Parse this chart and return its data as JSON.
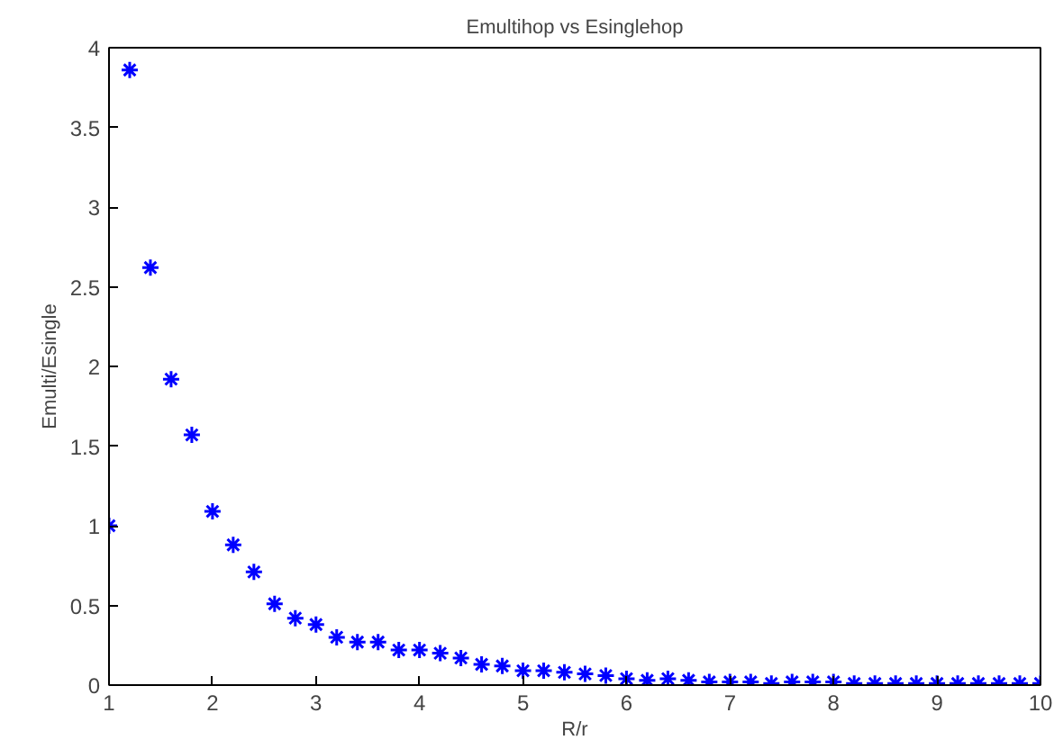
{
  "chart_data": {
    "type": "scatter",
    "title": "Emultihop vs Esinglehop",
    "xlabel": "R/r",
    "ylabel": "Emulti/Esingle",
    "x": [
      1,
      1.2,
      1.4,
      1.6,
      1.8,
      2,
      2.2,
      2.4,
      2.6,
      2.8,
      3,
      3.2,
      3.4,
      3.6,
      3.8,
      4,
      4.2,
      4.4,
      4.6,
      4.8,
      5,
      5.2,
      5.4,
      5.6,
      5.8,
      6,
      6.2,
      6.4,
      6.6,
      6.8,
      7,
      7.2,
      7.4,
      7.6,
      7.8,
      8,
      8.2,
      8.4,
      8.6,
      8.8,
      9,
      9.2,
      9.4,
      9.6,
      9.8,
      10
    ],
    "series": [
      {
        "color": "#0000ff",
        "values": [
          1.0,
          3.86,
          2.62,
          1.92,
          1.57,
          1.09,
          0.88,
          0.71,
          0.51,
          0.42,
          0.38,
          0.3,
          0.27,
          0.27,
          0.22,
          0.22,
          0.2,
          0.17,
          0.13,
          0.12,
          0.09,
          0.09,
          0.08,
          0.07,
          0.06,
          0.04,
          0.03,
          0.04,
          0.03,
          0.02,
          0.02,
          0.02,
          0.01,
          0.02,
          0.02,
          0.02,
          0.01,
          0.01,
          0.01,
          0.01,
          0.01,
          0.01,
          0.01,
          0.01,
          0.01,
          0.01
        ]
      }
    ],
    "xlim": [
      1,
      10
    ],
    "ylim": [
      0,
      4
    ],
    "xticks": [
      1,
      2,
      3,
      4,
      5,
      6,
      7,
      8,
      9,
      10
    ],
    "yticks": [
      0,
      0.5,
      1,
      1.5,
      2,
      2.5,
      3,
      3.5,
      4
    ],
    "marker": "cross",
    "grid": false
  }
}
